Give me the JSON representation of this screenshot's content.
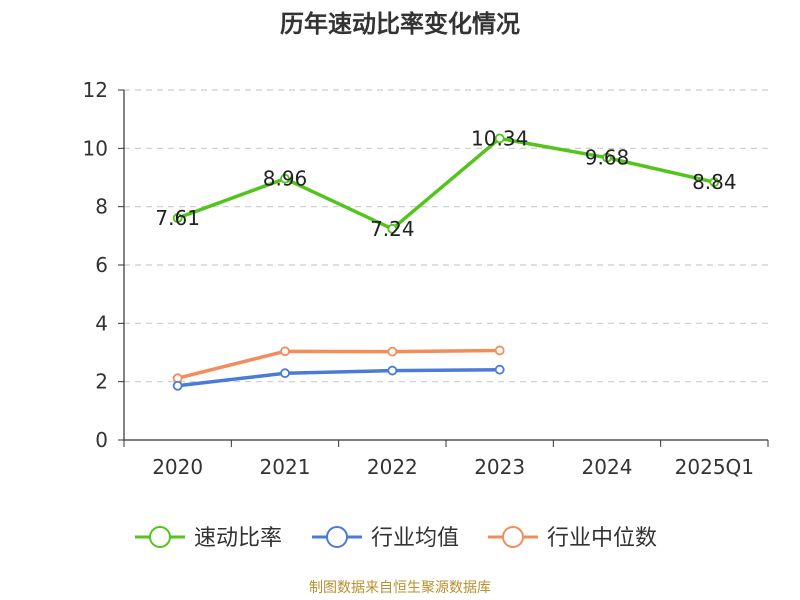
{
  "chart_data": {
    "type": "line",
    "title": "历年速动比率变化情况",
    "categories": [
      "2020",
      "2021",
      "2022",
      "2023",
      "2024",
      "2025Q1"
    ],
    "ylim": [
      0,
      12
    ],
    "yticks": [
      "0",
      "2",
      "4",
      "6",
      "8",
      "10",
      "12"
    ],
    "grid": true,
    "legend_position": "bottom",
    "series": [
      {
        "name": "速动比率",
        "color": "#52c41a",
        "values": [
          7.61,
          8.96,
          7.24,
          10.34,
          9.68,
          8.84
        ],
        "labels": [
          "7.61",
          "8.96",
          "7.24",
          "10.34",
          "9.68",
          "8.84"
        ]
      },
      {
        "name": "行业均值",
        "color": "#4a7bd6",
        "values": [
          1.86,
          2.29,
          2.38,
          2.41,
          null,
          null
        ]
      },
      {
        "name": "行业中位数",
        "color": "#f28c5a",
        "values": [
          2.12,
          3.04,
          3.03,
          3.07,
          null,
          null
        ]
      }
    ]
  },
  "source": "制图数据来自恒生聚源数据库"
}
